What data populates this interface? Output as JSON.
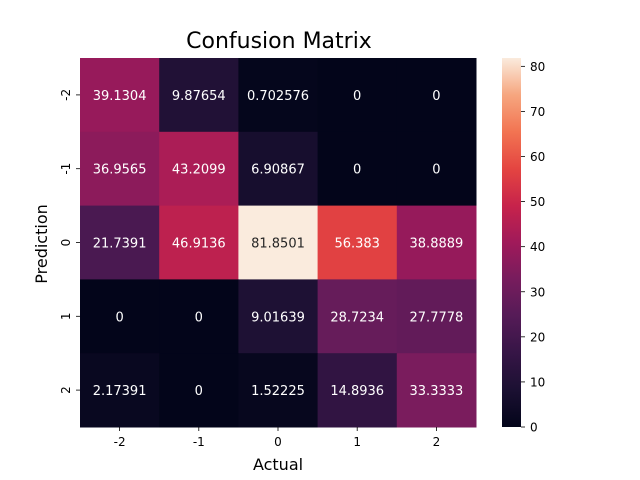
{
  "chart_data": {
    "type": "heatmap",
    "title": "Confusion Matrix",
    "xlabel": "Actual",
    "ylabel": "Prediction",
    "x_categories": [
      "-2",
      "-1",
      "0",
      "1",
      "2"
    ],
    "y_categories": [
      "-2",
      "-1",
      "0",
      "1",
      "2"
    ],
    "values": [
      [
        39.1304,
        9.87654,
        0.702576,
        0,
        0
      ],
      [
        36.9565,
        43.2099,
        6.90867,
        0,
        0
      ],
      [
        21.7391,
        46.9136,
        81.8501,
        56.383,
        38.8889
      ],
      [
        0,
        0,
        9.01639,
        28.7234,
        27.7778
      ],
      [
        2.17391,
        0,
        1.52225,
        14.8936,
        33.3333
      ]
    ],
    "cell_labels": [
      [
        "39.1304",
        "9.87654",
        "0.702576",
        "0",
        "0"
      ],
      [
        "36.9565",
        "43.2099",
        "6.90867",
        "0",
        "0"
      ],
      [
        "21.7391",
        "46.9136",
        "81.8501",
        "56.383",
        "38.8889"
      ],
      [
        "0",
        "0",
        "9.01639",
        "28.7234",
        "27.7778"
      ],
      [
        "2.17391",
        "0",
        "1.52225",
        "14.8936",
        "33.3333"
      ]
    ],
    "colorbar": {
      "range": [
        0,
        81.8501
      ],
      "ticks": [
        "0",
        "10",
        "20",
        "30",
        "40",
        "50",
        "60",
        "70",
        "80"
      ],
      "colormap": "rocket"
    },
    "grid": false
  }
}
